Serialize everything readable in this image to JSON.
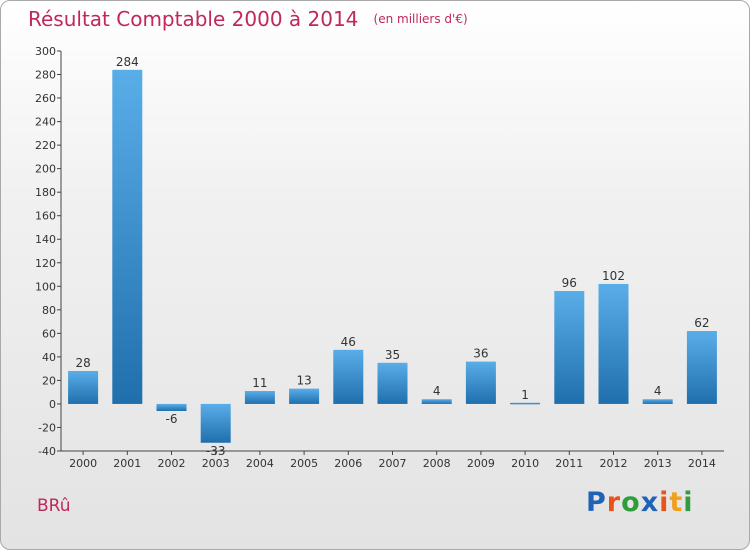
{
  "header": {
    "title": "Résultat Comptable 2000 à 2014",
    "subtitle": "(en milliers d'€)"
  },
  "footer": {
    "commune": "BRû",
    "brand": "Proxiti"
  },
  "colors": {
    "title": "#c0285a",
    "bar_top": "#5aaee8",
    "bar_bottom": "#1f6fad",
    "brand_letters": [
      "#1f63b6",
      "#e8531c",
      "#2e9e3c",
      "#1f63b6",
      "#e8531c",
      "#f0a01c",
      "#2e9e3c"
    ]
  },
  "chart_data": {
    "type": "bar",
    "title": "Résultat Comptable 2000 à 2014",
    "subtitle": "(en milliers d'€)",
    "xlabel": "",
    "ylabel": "",
    "categories": [
      "2000",
      "2001",
      "2002",
      "2003",
      "2004",
      "2005",
      "2006",
      "2007",
      "2008",
      "2009",
      "2010",
      "2011",
      "2012",
      "2013",
      "2014"
    ],
    "values": [
      28,
      284,
      -6,
      -33,
      11,
      13,
      46,
      35,
      4,
      36,
      1,
      96,
      102,
      4,
      62
    ],
    "labels": [
      "28",
      "284",
      "-6",
      "-33",
      "11",
      "13",
      "46",
      "35",
      "4",
      "36",
      "1",
      "96",
      "102",
      "4",
      "62"
    ],
    "ylim": [
      -40,
      300
    ],
    "yticks": [
      -40,
      -20,
      0,
      20,
      40,
      60,
      80,
      100,
      120,
      140,
      160,
      180,
      200,
      220,
      240,
      260,
      280,
      300
    ],
    "grid": false,
    "legend": "none"
  }
}
